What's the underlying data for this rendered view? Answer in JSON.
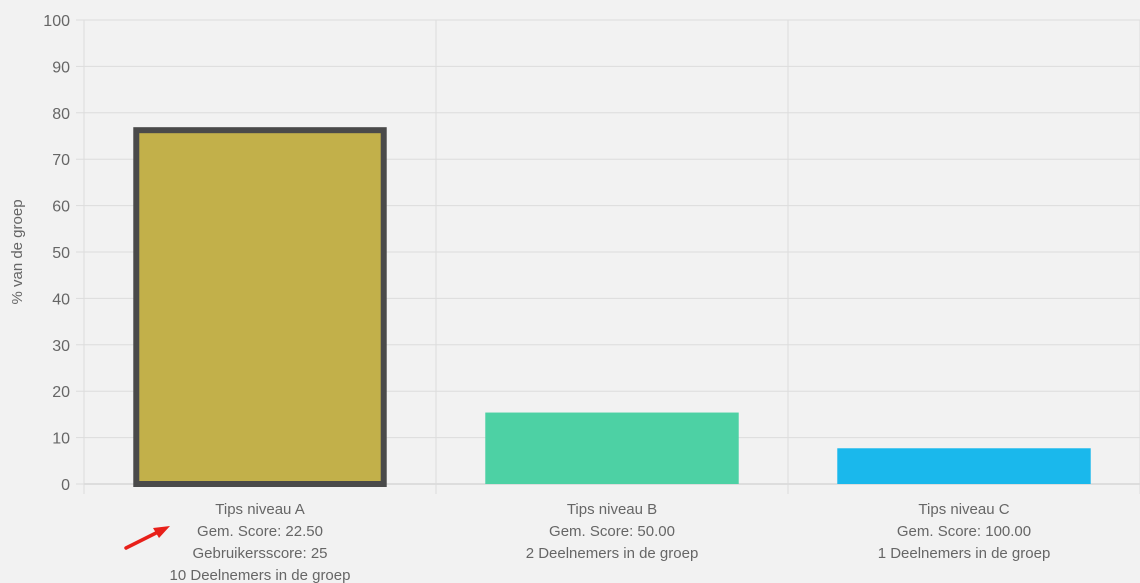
{
  "chart_data": {
    "type": "bar",
    "ylabel": "% van de groep",
    "xlabel": "",
    "ylim": [
      0,
      100
    ],
    "yticks": [
      0,
      10,
      20,
      30,
      40,
      50,
      60,
      70,
      80,
      90,
      100
    ],
    "grid": true,
    "categories": [
      {
        "label_lines": [
          "Tips niveau A",
          "Gem. Score: 22.50",
          "Gebruikersscore: 25",
          "10 Deelnemers in de groep"
        ],
        "value": 76.9,
        "color": "#c2b04a",
        "highlighted": true
      },
      {
        "label_lines": [
          "Tips niveau B",
          "Gem. Score: 50.00",
          "2 Deelnemers in de groep"
        ],
        "value": 15.4,
        "color": "#4dd1a4",
        "highlighted": false
      },
      {
        "label_lines": [
          "Tips niveau C",
          "Gem. Score: 100.00",
          "1 Deelnemers in de groep"
        ],
        "value": 7.7,
        "color": "#1ab8ec",
        "highlighted": false
      }
    ],
    "highlight_border_color": "#4a4a4a",
    "annotation": {
      "type": "arrow",
      "color": "#e8201a",
      "points_to": "Gem. Score: 22.50"
    }
  }
}
